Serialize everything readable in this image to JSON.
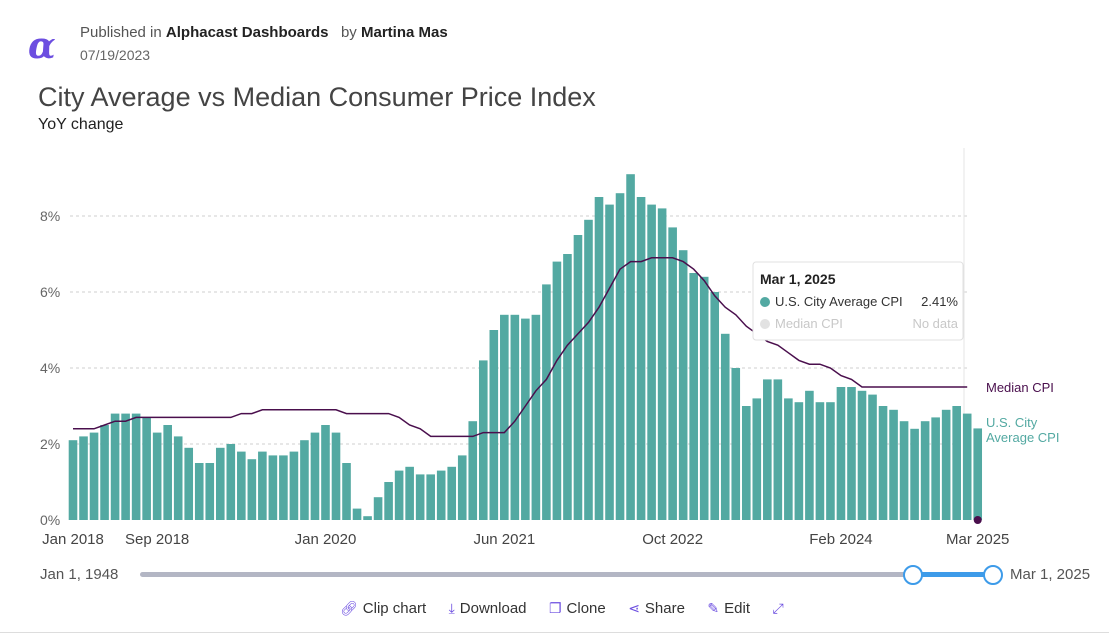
{
  "header": {
    "published_prefix": "Published in",
    "publisher": "Alphacast Dashboards",
    "by_prefix": "by",
    "author": "Martina Mas",
    "date": "07/19/2023",
    "logo_icon": "alpha-logo-icon"
  },
  "chart_data": {
    "type": "bar",
    "title": "City Average vs Median Consumer Price Index",
    "subtitle": "YoY change",
    "y_ticks": [
      "0%",
      "2%",
      "4%",
      "6%",
      "8%"
    ],
    "ylim": [
      0,
      9.5
    ],
    "x_tick_labels": [
      {
        "label": "Jan 2018",
        "index": 0
      },
      {
        "label": "Sep 2018",
        "index": 8
      },
      {
        "label": "Jan 2020",
        "index": 24
      },
      {
        "label": "Jun 2021",
        "index": 41
      },
      {
        "label": "Oct 2022",
        "index": 57
      },
      {
        "label": "Feb 2024",
        "index": 73
      },
      {
        "label": "Mar 2025",
        "index": 86
      }
    ],
    "grid": true,
    "series": [
      {
        "name": "U.S. City Average CPI",
        "type": "bar",
        "color": "#53a9a2",
        "start": "Jan 2018",
        "values": [
          2.1,
          2.2,
          2.3,
          2.5,
          2.8,
          2.8,
          2.8,
          2.7,
          2.3,
          2.5,
          2.2,
          1.9,
          1.5,
          1.5,
          1.9,
          2.0,
          1.8,
          1.6,
          1.8,
          1.7,
          1.7,
          1.8,
          2.1,
          2.3,
          2.5,
          2.3,
          1.5,
          0.3,
          0.1,
          0.6,
          1.0,
          1.3,
          1.4,
          1.2,
          1.2,
          1.3,
          1.4,
          1.7,
          2.6,
          4.2,
          5.0,
          5.4,
          5.4,
          5.3,
          5.4,
          6.2,
          6.8,
          7.0,
          7.5,
          7.9,
          8.5,
          8.3,
          8.6,
          9.1,
          8.5,
          8.3,
          8.2,
          7.7,
          7.1,
          6.5,
          6.4,
          6.0,
          4.9,
          4.0,
          3.0,
          3.2,
          3.7,
          3.7,
          3.2,
          3.1,
          3.4,
          3.1,
          3.1,
          3.5,
          3.5,
          3.4,
          3.3,
          3.0,
          2.9,
          2.6,
          2.4,
          2.6,
          2.7,
          2.9,
          3.0,
          2.8,
          2.41
        ]
      },
      {
        "name": "Median CPI",
        "type": "line",
        "color": "#4a0f4d",
        "start": "Jan 2018",
        "values": [
          2.4,
          2.4,
          2.4,
          2.5,
          2.6,
          2.6,
          2.7,
          2.7,
          2.7,
          2.7,
          2.7,
          2.7,
          2.7,
          2.7,
          2.7,
          2.7,
          2.8,
          2.8,
          2.9,
          2.9,
          2.9,
          2.9,
          2.9,
          2.9,
          2.9,
          2.9,
          2.8,
          2.8,
          2.8,
          2.8,
          2.8,
          2.7,
          2.5,
          2.4,
          2.2,
          2.2,
          2.2,
          2.2,
          2.2,
          2.3,
          2.3,
          2.3,
          2.6,
          3.0,
          3.4,
          3.7,
          4.2,
          4.6,
          4.9,
          5.2,
          5.6,
          6.1,
          6.6,
          6.8,
          6.8,
          6.9,
          6.9,
          6.9,
          6.8,
          6.6,
          6.3,
          5.9,
          5.6,
          5.4,
          5.1,
          4.9,
          4.7,
          4.6,
          4.4,
          4.2,
          4.1,
          4.1,
          4.0,
          3.8,
          3.7,
          3.5,
          3.5,
          3.5,
          3.5,
          3.5,
          3.5,
          3.5,
          3.5,
          3.5,
          3.5,
          3.5
        ]
      }
    ],
    "legend_labels": {
      "median": "Median CPI",
      "city_line1": "U.S. City",
      "city_line2": "Average CPI"
    },
    "tooltip": {
      "date": "Mar 1, 2025",
      "row1_label": "U.S. City Average CPI",
      "row1_value": "2.41%",
      "row2_label": "Median CPI",
      "row2_value": "No data"
    }
  },
  "range_slider": {
    "start_label": "Jan 1, 1948",
    "end_label": "Mar 1, 2025",
    "selected_start_fraction": 0.906,
    "selected_end_fraction": 1.0
  },
  "toolbar": {
    "clip": "Clip chart",
    "download": "Download",
    "clone": "Clone",
    "share": "Share",
    "edit": "Edit"
  }
}
